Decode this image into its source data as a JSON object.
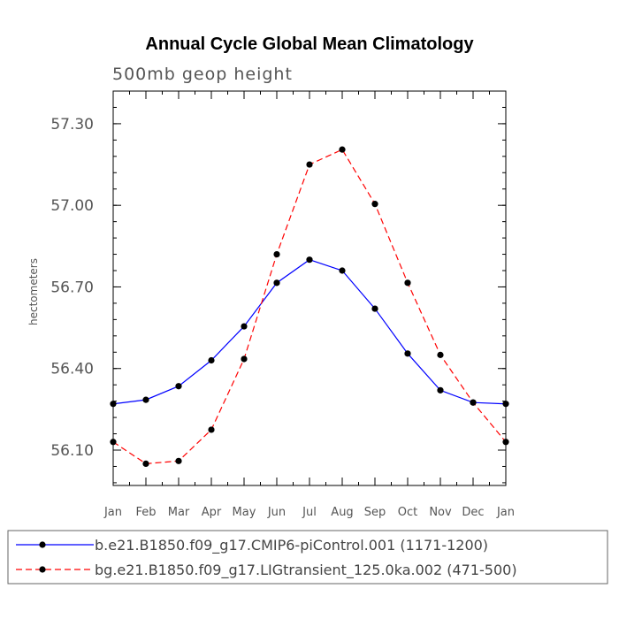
{
  "chart_data": {
    "type": "line",
    "title": "Annual Cycle Global Mean Climatology",
    "subtitle": "500mb geop height",
    "xlabel": "",
    "ylabel": "hectometers",
    "categories": [
      "Jan",
      "Feb",
      "Mar",
      "Apr",
      "May",
      "Jun",
      "Jul",
      "Aug",
      "Sep",
      "Oct",
      "Nov",
      "Dec",
      "Jan"
    ],
    "yticks": [
      "56.10",
      "56.40",
      "56.70",
      "57.00",
      "57.30"
    ],
    "ylim": [
      55.97,
      57.42
    ],
    "grid": false,
    "legend_position": "bottom",
    "series": [
      {
        "name": "b.e21.B1850.f09_g17.CMIP6-piControl.001 (1171-1200)",
        "color": "#0000ff",
        "line_style": "solid",
        "marker": "filled-circle",
        "values": [
          56.27,
          56.285,
          56.335,
          56.43,
          56.555,
          56.715,
          56.8,
          56.76,
          56.62,
          56.455,
          56.32,
          56.275,
          56.27
        ]
      },
      {
        "name": "bg.e21.B1850.f09_g17.LIGtransient_125.0ka.002 (471-500)",
        "color": "#ff0000",
        "line_style": "dashed",
        "marker": "filled-circle",
        "values": [
          56.13,
          56.05,
          56.06,
          56.175,
          56.435,
          56.82,
          57.15,
          57.205,
          57.005,
          56.715,
          56.45,
          56.275,
          56.13
        ]
      }
    ]
  }
}
